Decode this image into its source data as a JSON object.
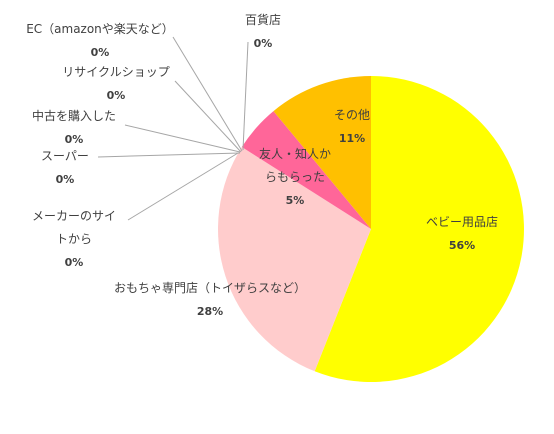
{
  "chart_data": {
    "type": "pie",
    "title": "",
    "start_angle_deg": 0,
    "direction": "clockwise",
    "legend": "none",
    "slices": [
      {
        "name": "ベビー用品店",
        "lines": [
          "ベビー用品店"
        ],
        "value": 56,
        "label": "56%",
        "color": "#ffff00"
      },
      {
        "name": "おもちゃ専門店（トイザらスなど）",
        "lines": [
          "おもちゃ専門店（トイザらスなど）"
        ],
        "value": 28,
        "label": "28%",
        "color": "#ffcccc"
      },
      {
        "name": "メーカーのサイトから",
        "lines": [
          "メーカーのサイ",
          "トから"
        ],
        "value": 0,
        "label": "0%",
        "color": "#d9d9d9"
      },
      {
        "name": "スーパー",
        "lines": [
          "スーパー"
        ],
        "value": 0,
        "label": "0%",
        "color": "#d9d9d9"
      },
      {
        "name": "中古を購入した",
        "lines": [
          "中古を購入した"
        ],
        "value": 0,
        "label": "0%",
        "color": "#d9d9d9"
      },
      {
        "name": "リサイクルショップ",
        "lines": [
          "リサイクルショップ"
        ],
        "value": 0,
        "label": "0%",
        "color": "#d9d9d9"
      },
      {
        "name": "EC（amazonや楽天など）",
        "lines": [
          "EC（amazonや楽天など）"
        ],
        "value": 0,
        "label": "0%",
        "color": "#d9d9d9"
      },
      {
        "name": "百貨店",
        "lines": [
          "百貨店"
        ],
        "value": 0,
        "label": "0%",
        "color": "#d9d9d9"
      },
      {
        "name": "友人・知人からもらった",
        "lines": [
          "友人・知人か",
          "らもらった"
        ],
        "value": 5,
        "label": "5%",
        "color": "#ff6699"
      },
      {
        "name": "その他",
        "lines": [
          "その他"
        ],
        "value": 11,
        "label": "11%",
        "color": "#ffc000"
      }
    ]
  }
}
